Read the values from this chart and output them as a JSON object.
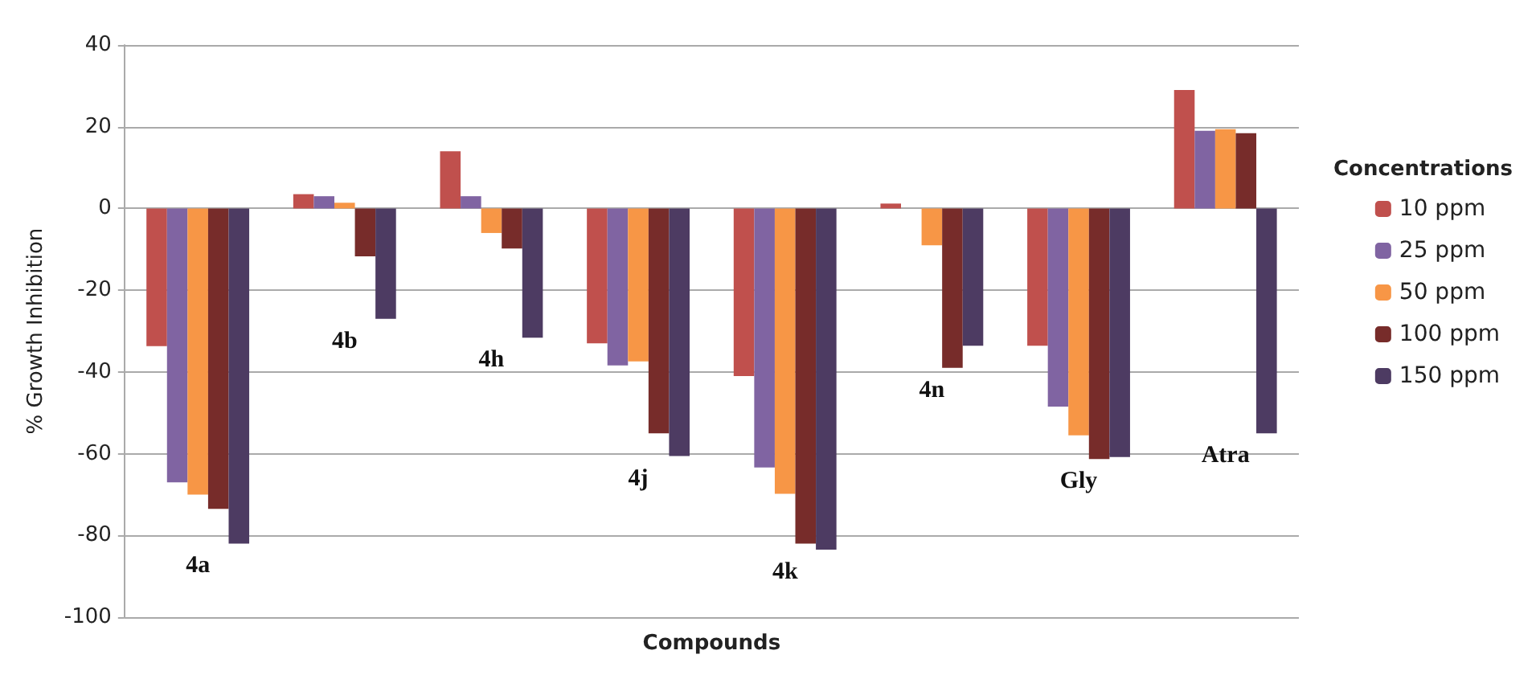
{
  "chart_data": {
    "type": "bar",
    "xlabel": "Compounds",
    "ylabel": "% Growth Inhibition",
    "legend_title": "Concentrations",
    "legend": "right",
    "grid": "y",
    "categories": [
      "4a",
      "4b",
      "4h",
      "4j",
      "4k",
      "4n",
      "Gly",
      "Atra"
    ],
    "ylim": [
      -100,
      40
    ],
    "yticks": [
      -100,
      -80,
      -60,
      -40,
      -20,
      0,
      20,
      40
    ],
    "series": [
      {
        "name": "10 ppm",
        "color": "#c0504d",
        "values": [
          -33.7,
          3.5,
          14,
          -33,
          -41,
          1.2,
          -33.6,
          29
        ]
      },
      {
        "name": "25 ppm",
        "color": "#8064a2",
        "values": [
          -67,
          3,
          3,
          -38.4,
          -63.4,
          0,
          -48.5,
          19
        ]
      },
      {
        "name": "50 ppm",
        "color": "#f79646",
        "values": [
          -70,
          1.4,
          -6,
          -37.4,
          -69.8,
          -9,
          -55.5,
          19.4
        ]
      },
      {
        "name": "100 ppm",
        "color": "#772c2a",
        "values": [
          -73.5,
          -11.7,
          -9.8,
          -55,
          -82,
          -39,
          -61.3,
          18.4
        ]
      },
      {
        "name": "150 ppm",
        "color": "#4d3b62",
        "values": [
          -82,
          -27,
          -31.6,
          -60.6,
          -83.5,
          -33.6,
          -60.8,
          -55
        ]
      }
    ]
  }
}
